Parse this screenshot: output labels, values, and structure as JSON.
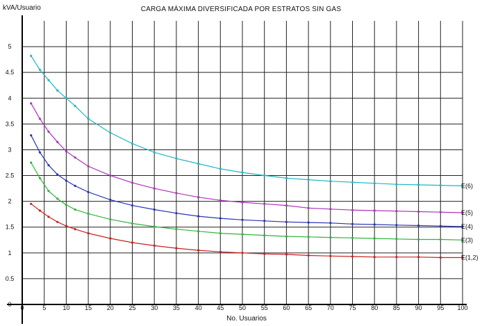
{
  "chart_data": {
    "type": "line",
    "title": "CARGA MÁXIMA DIVERSIFICADA POR ESTRATOS SIN GAS",
    "ylabel": "kVA/Usuario",
    "xlabel": "No. Usuarios",
    "xlim": [
      0,
      100
    ],
    "ylim": [
      0,
      5.5
    ],
    "grid": true,
    "x_ticks": [
      "0",
      "5",
      "10",
      "15",
      "20",
      "25",
      "30",
      "35",
      "40",
      "45",
      "50",
      "55",
      "60",
      "65",
      "70",
      "75",
      "80",
      "85",
      "90",
      "95",
      "100"
    ],
    "y_ticks": [
      "0",
      "0.5",
      "1",
      "1.5",
      "2",
      "2.5",
      "3",
      "3.5",
      "4",
      "4.5",
      "5"
    ],
    "series": [
      {
        "name": "E(6)",
        "color": "#1fb5c2",
        "x": [
          2,
          4,
          6,
          8,
          10,
          12,
          15,
          20,
          25,
          30,
          35,
          40,
          45,
          50,
          55,
          60,
          65,
          70,
          75,
          80,
          85,
          90,
          95,
          100
        ],
        "y": [
          4.82,
          4.55,
          4.35,
          4.15,
          4.0,
          3.85,
          3.6,
          3.33,
          3.12,
          2.95,
          2.83,
          2.73,
          2.63,
          2.56,
          2.5,
          2.45,
          2.42,
          2.39,
          2.37,
          2.35,
          2.33,
          2.32,
          2.31,
          2.3
        ]
      },
      {
        "name": "E(5)",
        "color": "#aa33b8",
        "x": [
          2,
          4,
          6,
          8,
          10,
          12,
          15,
          20,
          25,
          30,
          35,
          40,
          45,
          50,
          55,
          60,
          65,
          70,
          75,
          80,
          85,
          90,
          95,
          100
        ],
        "y": [
          3.9,
          3.6,
          3.35,
          3.15,
          2.97,
          2.85,
          2.68,
          2.5,
          2.36,
          2.25,
          2.16,
          2.08,
          2.02,
          1.98,
          1.95,
          1.92,
          1.87,
          1.85,
          1.83,
          1.82,
          1.81,
          1.8,
          1.79,
          1.78
        ]
      },
      {
        "name": "E(4)",
        "color": "#2a33b0",
        "x": [
          2,
          4,
          6,
          8,
          10,
          12,
          15,
          20,
          25,
          30,
          35,
          40,
          45,
          50,
          55,
          60,
          65,
          70,
          75,
          80,
          85,
          90,
          95,
          100
        ],
        "y": [
          3.28,
          2.95,
          2.7,
          2.52,
          2.4,
          2.3,
          2.18,
          2.03,
          1.92,
          1.84,
          1.77,
          1.71,
          1.67,
          1.64,
          1.62,
          1.6,
          1.59,
          1.58,
          1.56,
          1.55,
          1.54,
          1.53,
          1.52,
          1.51
        ]
      },
      {
        "name": "E(3)",
        "color": "#2fb33a",
        "x": [
          2,
          4,
          6,
          8,
          10,
          12,
          15,
          20,
          25,
          30,
          35,
          40,
          45,
          50,
          55,
          60,
          65,
          70,
          75,
          80,
          85,
          90,
          95,
          100
        ],
        "y": [
          2.75,
          2.45,
          2.2,
          2.05,
          1.93,
          1.84,
          1.76,
          1.65,
          1.57,
          1.51,
          1.46,
          1.42,
          1.38,
          1.36,
          1.34,
          1.32,
          1.31,
          1.3,
          1.29,
          1.28,
          1.27,
          1.26,
          1.26,
          1.25
        ]
      },
      {
        "name": "E(1,2)",
        "color": "#c8201f",
        "x": [
          2,
          4,
          6,
          8,
          10,
          12,
          15,
          20,
          25,
          30,
          35,
          40,
          45,
          50,
          55,
          60,
          65,
          70,
          75,
          80,
          85,
          90,
          95,
          100
        ],
        "y": [
          1.95,
          1.82,
          1.7,
          1.6,
          1.52,
          1.46,
          1.38,
          1.28,
          1.2,
          1.14,
          1.09,
          1.05,
          1.02,
          1.0,
          0.98,
          0.97,
          0.95,
          0.94,
          0.93,
          0.92,
          0.92,
          0.92,
          0.91,
          0.91
        ]
      }
    ]
  }
}
